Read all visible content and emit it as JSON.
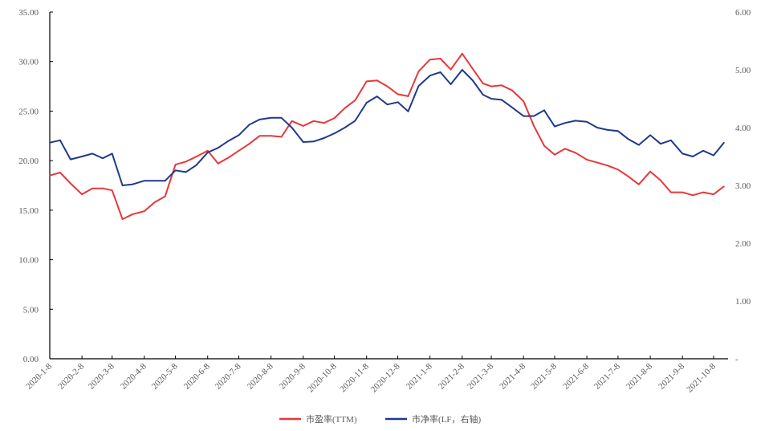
{
  "chart_data": {
    "type": "line",
    "title": "",
    "xlabel": "",
    "ylabel": "",
    "y2label": "",
    "grid": false,
    "legend_position": "bottom",
    "xlim": [
      "2020-01-08",
      "2021-10-18"
    ],
    "ylim": [
      0,
      35
    ],
    "y2lim": [
      0,
      6
    ],
    "y_ticks": [
      "0.00",
      "5.00",
      "10.00",
      "15.00",
      "20.00",
      "25.00",
      "30.00",
      "35.00"
    ],
    "y2_ticks": [
      "-",
      "1.00",
      "2.00",
      "3.00",
      "4.00",
      "5.00",
      "6.00"
    ],
    "x_ticks": [
      "2020-1-8",
      "2020-2-8",
      "2020-3-8",
      "2020-4-8",
      "2020-5-8",
      "2020-6-8",
      "2020-7-8",
      "2020-8-8",
      "2020-9-8",
      "2020-10-8",
      "2020-11-8",
      "2020-12-8",
      "2021-1-8",
      "2021-2-8",
      "2021-3-8",
      "2021-4-8",
      "2021-5-8",
      "2021-6-8",
      "2021-7-8",
      "2021-8-8",
      "2021-9-8",
      "2021-10-8"
    ],
    "x": [
      "2020-01-08",
      "2020-01-18",
      "2020-01-28",
      "2020-02-08",
      "2020-02-18",
      "2020-02-28",
      "2020-03-08",
      "2020-03-18",
      "2020-03-28",
      "2020-04-08",
      "2020-04-18",
      "2020-04-28",
      "2020-05-08",
      "2020-05-18",
      "2020-05-28",
      "2020-06-08",
      "2020-06-18",
      "2020-06-28",
      "2020-07-08",
      "2020-07-18",
      "2020-07-28",
      "2020-08-08",
      "2020-08-18",
      "2020-08-28",
      "2020-09-08",
      "2020-09-18",
      "2020-09-28",
      "2020-10-08",
      "2020-10-18",
      "2020-10-28",
      "2020-11-08",
      "2020-11-18",
      "2020-11-28",
      "2020-12-08",
      "2020-12-18",
      "2020-12-28",
      "2021-01-08",
      "2021-01-18",
      "2021-01-28",
      "2021-02-08",
      "2021-02-18",
      "2021-02-28",
      "2021-03-08",
      "2021-03-18",
      "2021-03-28",
      "2021-04-08",
      "2021-04-18",
      "2021-04-28",
      "2021-05-08",
      "2021-05-18",
      "2021-05-28",
      "2021-06-08",
      "2021-06-18",
      "2021-06-28",
      "2021-07-08",
      "2021-07-18",
      "2021-07-28",
      "2021-08-08",
      "2021-08-18",
      "2021-08-28",
      "2021-09-08",
      "2021-09-18",
      "2021-09-28",
      "2021-10-08",
      "2021-10-18"
    ],
    "series": [
      {
        "name": "市盈率(TTM)",
        "axis": "left",
        "color": "#e8373a",
        "values": [
          18.5,
          18.8,
          17.7,
          16.6,
          17.2,
          17.2,
          17.0,
          14.1,
          14.6,
          14.9,
          15.8,
          16.4,
          19.6,
          19.9,
          20.4,
          21.0,
          19.7,
          20.3,
          21.0,
          21.7,
          22.5,
          22.5,
          22.4,
          24.0,
          23.5,
          24.0,
          23.8,
          24.3,
          25.3,
          26.1,
          28.0,
          28.1,
          27.5,
          26.7,
          26.5,
          29.0,
          30.2,
          30.3,
          29.2,
          30.8,
          29.3,
          27.8,
          27.5,
          27.6,
          27.1,
          26.0,
          23.5,
          21.5,
          20.6,
          21.2,
          20.8,
          20.1,
          19.8,
          19.5,
          19.1,
          18.4,
          17.6,
          18.9,
          18.0,
          16.8,
          16.8,
          16.5,
          16.8,
          16.6,
          17.4
        ]
      },
      {
        "name": "市净率(LF，右轴)",
        "axis": "right",
        "color": "#1f3a8a",
        "values": [
          3.74,
          3.78,
          3.45,
          3.5,
          3.55,
          3.47,
          3.55,
          3.0,
          3.02,
          3.08,
          3.08,
          3.08,
          3.26,
          3.23,
          3.35,
          3.57,
          3.65,
          3.77,
          3.87,
          4.05,
          4.14,
          4.17,
          4.17,
          4.0,
          3.75,
          3.76,
          3.82,
          3.9,
          4.0,
          4.12,
          4.43,
          4.54,
          4.4,
          4.44,
          4.28,
          4.72,
          4.9,
          4.96,
          4.75,
          5.0,
          4.82,
          4.57,
          4.5,
          4.48,
          4.35,
          4.2,
          4.2,
          4.3,
          4.02,
          4.08,
          4.12,
          4.1,
          4.0,
          3.96,
          3.94,
          3.8,
          3.7,
          3.87,
          3.72,
          3.78,
          3.55,
          3.5,
          3.6,
          3.52,
          3.74
        ]
      }
    ]
  }
}
